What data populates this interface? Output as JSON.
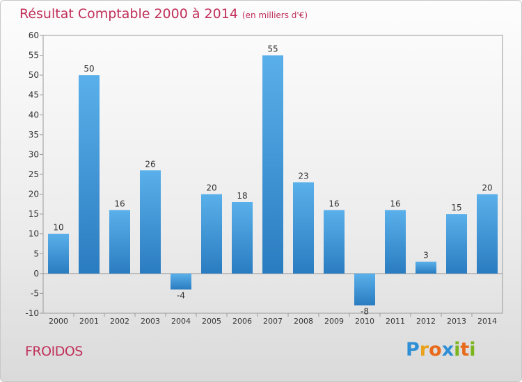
{
  "header": {
    "title": "Résultat Comptable 2000 à 2014",
    "subtitle": "(en milliers d'€)"
  },
  "footer": {
    "commune": "FROIDOS",
    "logo_letters": [
      "P",
      "r",
      "o",
      "x",
      "i",
      "t",
      "i"
    ],
    "logo_colors": [
      "#2e8fd6",
      "#e8a21c",
      "#e86a1c",
      "#2e8fd6",
      "#7ab51d",
      "#e86a1c",
      "#7ab51d"
    ]
  },
  "colors": {
    "bar_light": "#5ab0ea",
    "bar_dark": "#2a7cc0",
    "title": "#c0305a"
  },
  "chart_data": {
    "type": "bar",
    "title": "Résultat Comptable 2000 à 2014",
    "xlabel": "",
    "ylabel": "(en milliers d'€)",
    "categories": [
      "2000",
      "2001",
      "2002",
      "2003",
      "2004",
      "2005",
      "2006",
      "2007",
      "2008",
      "2009",
      "2010",
      "2011",
      "2012",
      "2013",
      "2014"
    ],
    "values": [
      10,
      50,
      16,
      26,
      -4,
      20,
      18,
      55,
      23,
      16,
      -8,
      16,
      3,
      15,
      20
    ],
    "ylim": [
      -10,
      60
    ],
    "yticks": [
      -10,
      -5,
      0,
      5,
      10,
      15,
      20,
      25,
      30,
      35,
      40,
      45,
      50,
      55,
      60
    ],
    "grid": false,
    "legend": "none"
  }
}
